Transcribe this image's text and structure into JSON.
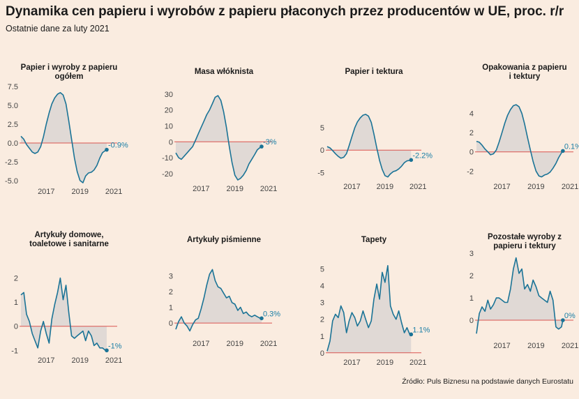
{
  "header": {
    "title": "Dynamika cen papieru i wyrobów z papieru płaconych przez producentów w UE, proc. r/r",
    "subtitle": "Ostatnie dane za luty 2021",
    "source": "Źródło: Puls Biznesu na podstawie danych Eurostatu"
  },
  "colors": {
    "line": "#1a7396",
    "area": "#e0d9d5",
    "zero": "#d9534f",
    "label": "#1a7ea6"
  },
  "chart_data": [
    {
      "type": "area",
      "title_lines": [
        "Papier i wyroby z papieru",
        "ogółem"
      ],
      "x_ticks": [
        2017,
        2019,
        2021
      ],
      "y_ticks": [
        7.5,
        5.0,
        2.5,
        0.0,
        -2.5,
        -5.0
      ],
      "y_tick_labels": [
        "7.5",
        "5.0",
        "2.5",
        "0.0",
        "-2.5",
        "-5.0"
      ],
      "ylim": [
        -5.3,
        7.8
      ],
      "xlim": [
        2016.0,
        2021.7
      ],
      "last_label": "-0.9%",
      "x": [
        2016.0,
        2016.17,
        2016.33,
        2016.5,
        2016.67,
        2016.83,
        2017.0,
        2017.17,
        2017.33,
        2017.5,
        2017.67,
        2017.83,
        2018.0,
        2018.17,
        2018.33,
        2018.5,
        2018.67,
        2018.83,
        2019.0,
        2019.17,
        2019.33,
        2019.5,
        2019.67,
        2019.83,
        2020.0,
        2020.17,
        2020.33,
        2020.5,
        2020.67,
        2020.83,
        2021.0,
        2021.08
      ],
      "values": [
        0.9,
        0.5,
        -0.2,
        -0.7,
        -1.2,
        -1.4,
        -1.2,
        -0.5,
        0.8,
        2.5,
        4.0,
        5.2,
        6.0,
        6.5,
        6.7,
        6.4,
        5.2,
        3.0,
        0.5,
        -2.0,
        -3.8,
        -5.0,
        -5.3,
        -4.4,
        -4.0,
        -3.9,
        -3.6,
        -3.0,
        -2.0,
        -1.3,
        -1.0,
        -0.9
      ]
    },
    {
      "type": "area",
      "title_lines": [
        "Masa włóknista"
      ],
      "x_ticks": [
        2017,
        2019,
        2021
      ],
      "y_ticks": [
        30,
        20,
        10,
        0,
        -10,
        -20
      ],
      "y_tick_labels": [
        "30",
        "20",
        "10",
        "0",
        "-10",
        "-20"
      ],
      "ylim": [
        -24,
        33
      ],
      "xlim": [
        2016.0,
        2021.7
      ],
      "last_label": "-3%",
      "x": [
        2016.0,
        2016.17,
        2016.33,
        2016.5,
        2016.67,
        2016.83,
        2017.0,
        2017.17,
        2017.33,
        2017.5,
        2017.67,
        2017.83,
        2018.0,
        2018.17,
        2018.33,
        2018.5,
        2018.67,
        2018.83,
        2019.0,
        2019.17,
        2019.33,
        2019.5,
        2019.67,
        2019.83,
        2020.0,
        2020.17,
        2020.33,
        2020.5,
        2020.67,
        2020.83,
        2021.0,
        2021.08
      ],
      "values": [
        -7,
        -10,
        -11,
        -9,
        -7,
        -5,
        -3,
        1,
        5,
        9,
        13,
        17,
        20,
        24,
        28,
        29,
        26,
        19,
        9,
        -3,
        -13,
        -21,
        -24,
        -23,
        -21,
        -18,
        -14,
        -11,
        -8,
        -5,
        -3.5,
        -3
      ]
    },
    {
      "type": "area",
      "title_lines": [
        "Papier i tektura"
      ],
      "x_ticks": [
        2017,
        2019,
        2021
      ],
      "y_ticks": [
        5,
        0,
        -5
      ],
      "y_tick_labels": [
        "5",
        "0",
        "-5"
      ],
      "ylim": [
        -6.2,
        8.6
      ],
      "xlim": [
        2016.0,
        2021.7
      ],
      "last_label": "-2.2%",
      "x": [
        2016.0,
        2016.17,
        2016.33,
        2016.5,
        2016.67,
        2016.83,
        2017.0,
        2017.17,
        2017.33,
        2017.5,
        2017.67,
        2017.83,
        2018.0,
        2018.17,
        2018.33,
        2018.5,
        2018.67,
        2018.83,
        2019.0,
        2019.17,
        2019.33,
        2019.5,
        2019.67,
        2019.83,
        2020.0,
        2020.17,
        2020.33,
        2020.5,
        2020.67,
        2020.83,
        2021.0,
        2021.08
      ],
      "values": [
        0.8,
        0.5,
        -0.1,
        -0.8,
        -1.4,
        -1.8,
        -1.6,
        -0.8,
        1.0,
        3.0,
        5.0,
        6.3,
        7.2,
        7.8,
        8.0,
        7.6,
        6.2,
        3.6,
        0.5,
        -2.3,
        -4.3,
        -5.7,
        -6.0,
        -5.3,
        -4.8,
        -4.6,
        -4.2,
        -3.6,
        -2.8,
        -2.4,
        -2.3,
        -2.2
      ]
    },
    {
      "type": "area",
      "title_lines": [
        "Opakowania z papieru",
        "i tektury"
      ],
      "x_ticks": [
        2017,
        2019,
        2021
      ],
      "y_ticks": [
        4,
        2,
        0,
        -2
      ],
      "y_tick_labels": [
        "4",
        "2",
        "0",
        "-2"
      ],
      "ylim": [
        -2.7,
        5.2
      ],
      "xlim": [
        2016.0,
        2021.7
      ],
      "last_label": "0.1%",
      "x": [
        2016.0,
        2016.17,
        2016.33,
        2016.5,
        2016.67,
        2016.83,
        2017.0,
        2017.17,
        2017.33,
        2017.5,
        2017.67,
        2017.83,
        2018.0,
        2018.17,
        2018.33,
        2018.5,
        2018.67,
        2018.83,
        2019.0,
        2019.17,
        2019.33,
        2019.5,
        2019.67,
        2019.83,
        2020.0,
        2020.17,
        2020.33,
        2020.5,
        2020.67,
        2020.83,
        2021.0,
        2021.08
      ],
      "values": [
        1.1,
        1.0,
        0.7,
        0.3,
        0.0,
        -0.3,
        -0.2,
        0.2,
        1.0,
        2.0,
        3.0,
        3.8,
        4.4,
        4.8,
        4.9,
        4.7,
        4.0,
        2.9,
        1.5,
        0.2,
        -1.0,
        -2.0,
        -2.5,
        -2.6,
        -2.4,
        -2.3,
        -2.1,
        -1.7,
        -1.2,
        -0.6,
        -0.1,
        0.1
      ]
    },
    {
      "type": "area",
      "title_lines": [
        "Artykuły domowe,",
        "toaletowe i sanitarne"
      ],
      "x_ticks": [
        2017,
        2019,
        2021
      ],
      "y_ticks": [
        2,
        1,
        0,
        -1
      ],
      "y_tick_labels": [
        "2",
        "1",
        "0",
        "-1"
      ],
      "ylim": [
        -1.05,
        2.45
      ],
      "xlim": [
        2016.0,
        2021.7
      ],
      "last_label": "-1%",
      "x": [
        2016.0,
        2016.17,
        2016.33,
        2016.5,
        2016.67,
        2016.83,
        2017.0,
        2017.17,
        2017.33,
        2017.5,
        2017.67,
        2017.83,
        2018.0,
        2018.17,
        2018.33,
        2018.5,
        2018.67,
        2018.83,
        2019.0,
        2019.17,
        2019.33,
        2019.5,
        2019.67,
        2019.83,
        2020.0,
        2020.17,
        2020.33,
        2020.5,
        2020.67,
        2020.83,
        2021.0,
        2021.08
      ],
      "values": [
        1.3,
        1.4,
        0.5,
        0.2,
        -0.3,
        -0.6,
        -0.9,
        -0.2,
        0.2,
        -0.3,
        -0.7,
        0.3,
        0.9,
        1.4,
        2.0,
        1.1,
        1.7,
        0.6,
        -0.4,
        -0.5,
        -0.4,
        -0.3,
        -0.2,
        -0.6,
        -0.2,
        -0.4,
        -0.8,
        -0.7,
        -0.9,
        -0.9,
        -1.0,
        -1.0
      ]
    },
    {
      "type": "area",
      "title_lines": [
        "Artykuły piśmienne"
      ],
      "x_ticks": [
        2017,
        2019,
        2021
      ],
      "y_ticks": [
        3,
        2,
        1,
        0
      ],
      "y_tick_labels": [
        "3",
        "2",
        "1",
        "0"
      ],
      "ylim": [
        -0.75,
        3.55
      ],
      "xlim": [
        2016.0,
        2021.7
      ],
      "last_label": "0.3%",
      "x": [
        2016.0,
        2016.17,
        2016.33,
        2016.5,
        2016.67,
        2016.83,
        2017.0,
        2017.17,
        2017.33,
        2017.5,
        2017.67,
        2017.83,
        2018.0,
        2018.17,
        2018.33,
        2018.5,
        2018.67,
        2018.83,
        2019.0,
        2019.17,
        2019.33,
        2019.5,
        2019.67,
        2019.83,
        2020.0,
        2020.17,
        2020.33,
        2020.5,
        2020.67,
        2020.83,
        2021.0,
        2021.08
      ],
      "values": [
        -0.4,
        0.1,
        0.4,
        0.0,
        -0.2,
        -0.5,
        -0.1,
        0.2,
        0.3,
        0.9,
        1.6,
        2.4,
        3.1,
        3.4,
        2.7,
        2.3,
        2.2,
        1.9,
        1.6,
        1.7,
        1.3,
        1.2,
        0.8,
        1.0,
        0.6,
        0.7,
        0.5,
        0.4,
        0.5,
        0.4,
        0.3,
        0.3
      ]
    },
    {
      "type": "area",
      "title_lines": [
        "Tapety"
      ],
      "x_ticks": [
        2017,
        2019,
        2021
      ],
      "y_ticks": [
        5,
        4,
        3,
        2,
        1,
        0
      ],
      "y_tick_labels": [
        "5",
        "4",
        "3",
        "2",
        "1",
        "0"
      ],
      "ylim": [
        -0.05,
        5.4
      ],
      "xlim": [
        2016.0,
        2021.7
      ],
      "last_label": "1.1%",
      "x": [
        2016.0,
        2016.17,
        2016.33,
        2016.5,
        2016.67,
        2016.83,
        2017.0,
        2017.17,
        2017.33,
        2017.5,
        2017.67,
        2017.83,
        2018.0,
        2018.17,
        2018.33,
        2018.5,
        2018.67,
        2018.83,
        2019.0,
        2019.17,
        2019.33,
        2019.5,
        2019.67,
        2019.83,
        2020.0,
        2020.17,
        2020.33,
        2020.5,
        2020.67,
        2020.83,
        2021.0,
        2021.08
      ],
      "values": [
        0.1,
        0.7,
        1.9,
        2.3,
        2.1,
        2.8,
        2.4,
        1.2,
        1.9,
        2.4,
        2.1,
        1.6,
        1.9,
        2.5,
        2.0,
        1.5,
        1.9,
        3.2,
        4.1,
        3.2,
        4.8,
        4.2,
        5.2,
        2.8,
        2.3,
        2.0,
        2.5,
        1.8,
        1.2,
        1.5,
        1.1,
        1.1
      ]
    },
    {
      "type": "area",
      "title_lines": [
        "Pozostałe wyroby z",
        "papieru i tektury"
      ],
      "x_ticks": [
        2017,
        2019,
        2021
      ],
      "y_ticks": [
        3,
        2,
        1,
        0
      ],
      "y_tick_labels": [
        "3",
        "2",
        "1",
        "0"
      ],
      "ylim": [
        -0.75,
        3.1
      ],
      "xlim": [
        2016.0,
        2021.7
      ],
      "last_label": "0%",
      "x": [
        2016.0,
        2016.17,
        2016.33,
        2016.5,
        2016.67,
        2016.83,
        2017.0,
        2017.17,
        2017.33,
        2017.5,
        2017.67,
        2017.83,
        2018.0,
        2018.17,
        2018.33,
        2018.5,
        2018.67,
        2018.83,
        2019.0,
        2019.17,
        2019.33,
        2019.5,
        2019.67,
        2019.83,
        2020.0,
        2020.17,
        2020.33,
        2020.5,
        2020.67,
        2020.83,
        2021.0,
        2021.08
      ],
      "values": [
        -0.6,
        0.3,
        0.6,
        0.4,
        0.9,
        0.5,
        0.7,
        1.0,
        1.0,
        0.9,
        0.8,
        0.8,
        1.4,
        2.3,
        2.8,
        2.1,
        2.3,
        1.4,
        1.6,
        1.3,
        1.8,
        1.5,
        1.1,
        1.0,
        0.9,
        0.8,
        1.3,
        0.9,
        -0.3,
        -0.4,
        -0.3,
        0.0
      ]
    }
  ]
}
